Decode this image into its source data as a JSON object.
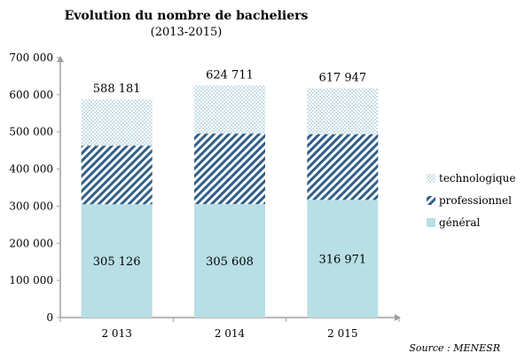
{
  "chart_data": {
    "type": "bar",
    "stacked": true,
    "title": "Evolution du nombre de bacheliers",
    "subtitle": "(2013-2015)",
    "categories": [
      "2 013",
      "2 014",
      "2 015"
    ],
    "series": [
      {
        "name": "général",
        "values": [
          305126,
          305608,
          316971
        ],
        "color": "#b7dfe5",
        "pattern": "solid"
      },
      {
        "name": "professionnel",
        "values": [
          158000,
          190000,
          177000
        ],
        "color": "#2f5f8a",
        "pattern": "diagonal-hatch"
      },
      {
        "name": "technologique",
        "values": [
          125055,
          129103,
          123976
        ],
        "color": "#9fc6d4",
        "pattern": "dotted"
      }
    ],
    "totals": [
      588181,
      624711,
      617947
    ],
    "total_labels": [
      "588 181",
      "624 711",
      "617 947"
    ],
    "base_labels": [
      "305 126",
      "305 608",
      "316 971"
    ],
    "yticks": [
      0,
      100000,
      200000,
      300000,
      400000,
      500000,
      600000,
      700000
    ],
    "ytick_labels": [
      "0",
      "100 000",
      "200 000",
      "300 000",
      "400 000",
      "500 000",
      "600 000",
      "700 000"
    ],
    "ylim": [
      0,
      700000
    ],
    "legend_position": "right",
    "legend_order": [
      "technologique",
      "professionnel",
      "général"
    ],
    "grid": false,
    "source": "Source : MENESR"
  }
}
